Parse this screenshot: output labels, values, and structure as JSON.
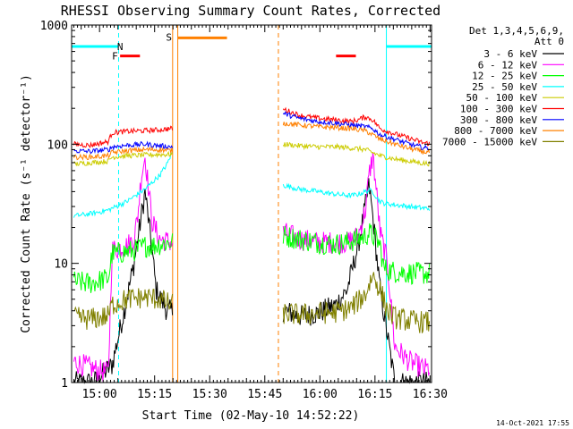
{
  "chart_data": {
    "type": "line",
    "title": "RHESSI Observing Summary Count Rates, Corrected",
    "xlabel": "Start Time (02-May-10 14:52:22)",
    "ylabel": "Corrected Count Rate (s⁻¹ detector⁻¹)",
    "footer": "14-Oct-2021 17:55",
    "x_unit": "minutes after 14:52:22",
    "xlim": [
      0,
      98
    ],
    "ylim": [
      1,
      1000
    ],
    "yscale": "log",
    "x_ticks": [
      {
        "label": "15:00",
        "value": 7.6
      },
      {
        "label": "15:15",
        "value": 22.6
      },
      {
        "label": "15:30",
        "value": 37.6
      },
      {
        "label": "15:45",
        "value": 52.6
      },
      {
        "label": "16:00",
        "value": 67.6
      },
      {
        "label": "16:15",
        "value": 82.6
      },
      {
        "label": "16:30",
        "value": 97.6
      }
    ],
    "y_ticks": [
      {
        "label": "1",
        "value": 1
      },
      {
        "label": "10",
        "value": 10
      },
      {
        "label": "100",
        "value": 100
      },
      {
        "label": "1000",
        "value": 1000
      }
    ],
    "legend_header": [
      "Det 1,3,4,5,6,9,",
      "Att 0"
    ],
    "gaps": [
      [
        27.5,
        57.5
      ]
    ],
    "series": [
      {
        "name": "3 - 6 keV",
        "color": "#000000",
        "x": [
          0.5,
          6,
          11,
          15,
          17,
          19,
          20,
          21,
          22,
          23,
          26,
          27,
          58,
          62,
          67,
          72,
          75,
          78,
          80,
          81,
          82,
          83,
          84,
          88,
          92,
          96
        ],
        "y": [
          1,
          1,
          1.4,
          5,
          10,
          25,
          40,
          22,
          12,
          6,
          4,
          4,
          4,
          3.6,
          3.8,
          4.5,
          6,
          14,
          30,
          45,
          25,
          12,
          6,
          1,
          1,
          1
        ]
      },
      {
        "name": "6 - 12 keV",
        "color": "#ff00ff",
        "x": [
          0.5,
          6,
          10,
          11,
          15,
          17,
          18,
          19,
          20,
          21,
          22,
          24,
          27,
          58,
          62,
          67,
          72,
          75,
          78,
          80,
          81,
          82,
          83,
          84,
          86,
          88,
          92,
          96
        ],
        "y": [
          1.5,
          1.3,
          1.2,
          13,
          14,
          16,
          25,
          55,
          80,
          40,
          22,
          16,
          15,
          18,
          16,
          15,
          15,
          15,
          17,
          28,
          55,
          80,
          40,
          18,
          10,
          2,
          1.5,
          1.3
        ]
      },
      {
        "name": "12 - 25 keV",
        "color": "#00ff00",
        "x": [
          0.5,
          5,
          10,
          11,
          15,
          18,
          20,
          22,
          24,
          27,
          58,
          62,
          67,
          72,
          75,
          78,
          80,
          81,
          82,
          83,
          84,
          85,
          88,
          92,
          96
        ],
        "y": [
          7,
          6.8,
          7.5,
          12,
          12.5,
          13,
          14,
          14,
          14.5,
          15,
          17,
          16,
          15,
          14.5,
          15,
          16,
          17,
          18,
          17,
          16,
          14,
          9,
          8.5,
          8.3,
          8.2
        ]
      },
      {
        "name": "25 - 50 keV",
        "color": "#00ffff",
        "x": [
          0.5,
          5,
          10,
          15,
          20,
          24,
          26,
          27.3,
          58,
          62,
          67,
          72,
          76,
          78,
          80,
          81,
          82,
          83,
          84,
          85,
          88,
          92,
          96
        ],
        "y": [
          25,
          26,
          28,
          33,
          42,
          55,
          68,
          85,
          45,
          42,
          40,
          38,
          37,
          38,
          40,
          41,
          40,
          36,
          33,
          32,
          31,
          30,
          29
        ]
      },
      {
        "name": "50 - 100 keV",
        "color": "#cccc00",
        "x": [
          0.5,
          5,
          10,
          11,
          15,
          20,
          24,
          27,
          58,
          62,
          67,
          72,
          76,
          80,
          84,
          88,
          92,
          96
        ],
        "y": [
          68,
          70,
          72,
          78,
          80,
          81,
          82,
          82,
          100,
          97,
          95,
          95,
          93,
          90,
          80,
          75,
          72,
          69
        ]
      },
      {
        "name": "100 - 300 keV",
        "color": "#ff0000",
        "x": [
          0.5,
          5,
          10,
          11,
          15,
          20,
          24,
          27,
          58,
          62,
          67,
          72,
          76,
          78,
          80,
          82,
          84,
          88,
          92,
          96
        ],
        "y": [
          100,
          98,
          105,
          125,
          128,
          130,
          132,
          135,
          195,
          175,
          165,
          160,
          155,
          160,
          170,
          160,
          135,
          122,
          112,
          102
        ]
      },
      {
        "name": "300 - 800 keV",
        "color": "#0000ff",
        "x": [
          0.5,
          5,
          10,
          11,
          15,
          20,
          24,
          27,
          58,
          62,
          67,
          72,
          76,
          80,
          82,
          84,
          88,
          92,
          96
        ],
        "y": [
          88,
          87,
          90,
          95,
          98,
          100,
          97,
          95,
          180,
          165,
          155,
          150,
          145,
          140,
          135,
          120,
          110,
          100,
          93
        ]
      },
      {
        "name": "800 - 7000 keV",
        "color": "#ff8000",
        "x": [
          0.5,
          5,
          10,
          11,
          15,
          20,
          24,
          27,
          58,
          62,
          67,
          72,
          76,
          80,
          84,
          88,
          92,
          96
        ],
        "y": [
          78,
          78,
          80,
          85,
          88,
          90,
          90,
          88,
          150,
          145,
          140,
          138,
          135,
          130,
          110,
          100,
          92,
          86
        ]
      },
      {
        "name": "7000 - 15000 keV",
        "color": "#808000",
        "x": [
          0.5,
          5,
          10,
          11,
          15,
          20,
          24,
          27,
          58,
          62,
          67,
          72,
          76,
          80,
          82,
          84,
          86,
          88,
          92,
          96
        ],
        "y": [
          3.5,
          3.4,
          3.6,
          4.5,
          5,
          5.2,
          5,
          4.5,
          3.8,
          3.7,
          3.8,
          3.9,
          4.2,
          5.5,
          8,
          6,
          4,
          3.5,
          3.3,
          3.2
        ]
      }
    ],
    "annotations": [
      {
        "label": "N",
        "color": "#00ffff",
        "x": 13.2,
        "y": 660
      },
      {
        "label": "F",
        "color": "#ff0000",
        "x": 11.8,
        "y": 550
      },
      {
        "label": "S",
        "color": "#ff8000",
        "x": 26.5,
        "y": 790
      }
    ],
    "markers": {
      "night_bars": [
        {
          "x1": 0,
          "x2": 12.8,
          "y": 660
        },
        {
          "x1": 85.7,
          "x2": 98,
          "y": 660
        }
      ],
      "flare_bars": [
        {
          "x1": 13.2,
          "x2": 18.6,
          "y": 550
        },
        {
          "x1": 72,
          "x2": 77.4,
          "y": 550
        }
      ],
      "saa_bars": [
        {
          "x1": 29,
          "x2": 42.3,
          "y": 780
        }
      ],
      "night_lines_solid": [
        0,
        85.7
      ],
      "night_lines_dashed": [
        12.8,
        98
      ],
      "saa_lines_solid": [
        27.5,
        28.9
      ],
      "saa_lines_dashed": [
        56.3
      ]
    }
  }
}
